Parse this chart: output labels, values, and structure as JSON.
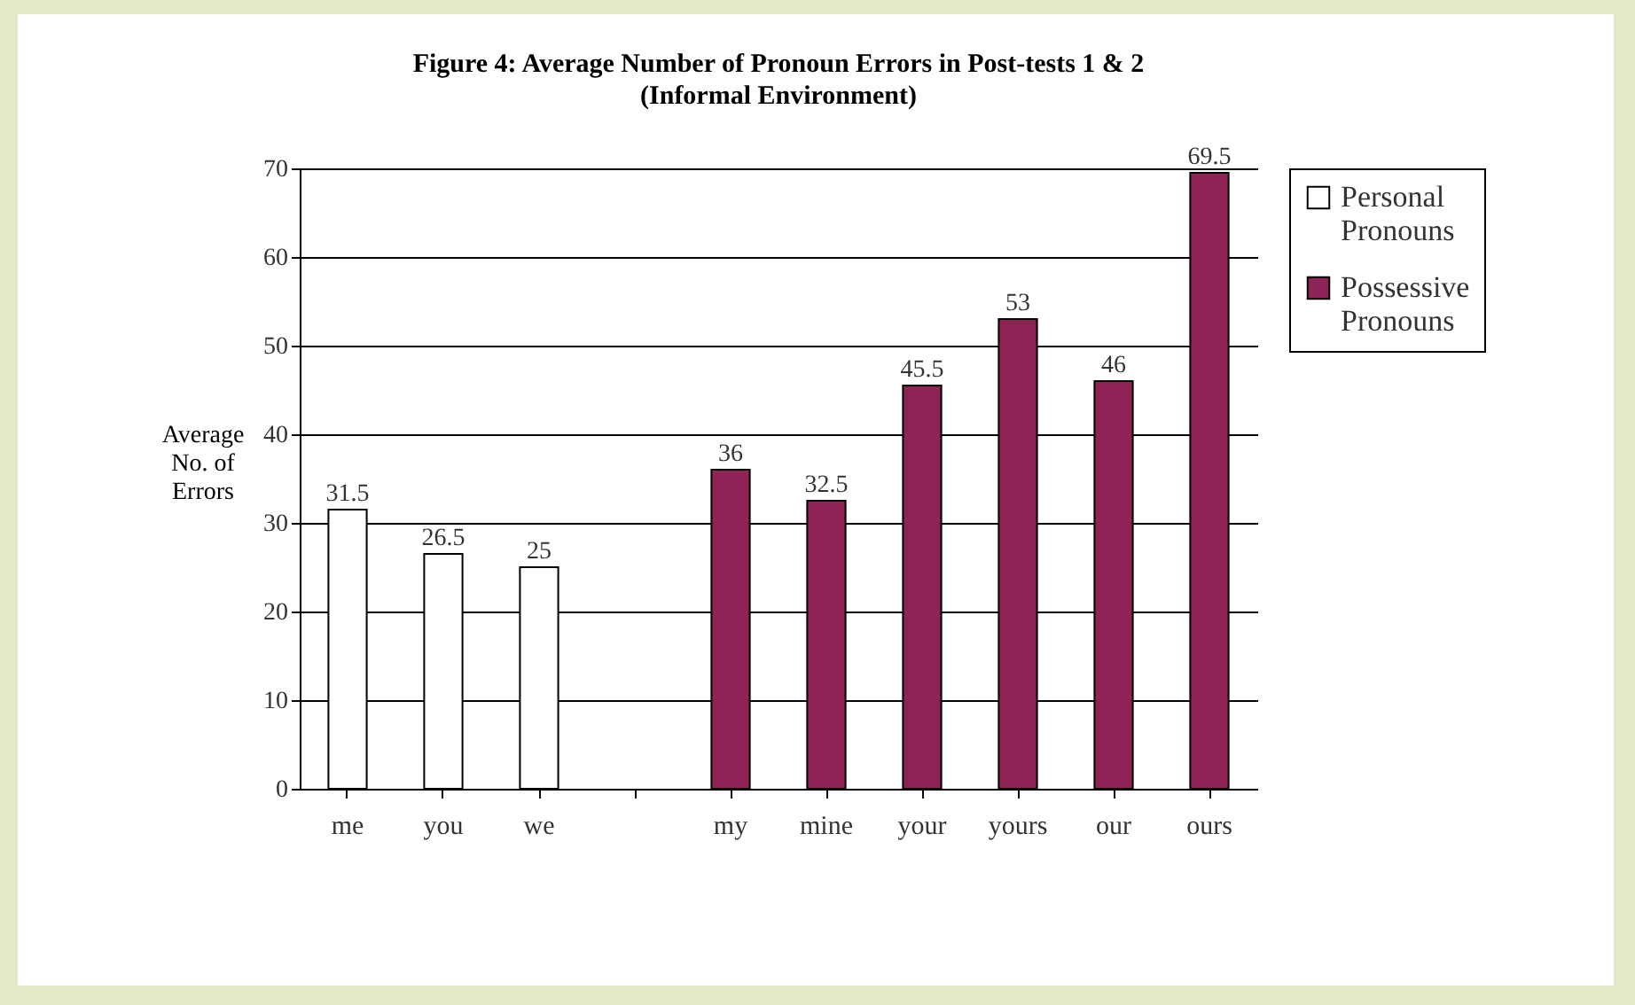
{
  "chart_data": {
    "type": "bar",
    "title": "Figure 4: Average Number of Pronoun Errors in Post-tests 1 & 2",
    "subtitle": "(Informal Environment)",
    "ylabel": "Average No. of Errors",
    "categories": [
      "me",
      "you",
      "we",
      null,
      "my",
      "mine",
      "your",
      "yours",
      "our",
      "ours"
    ],
    "series": [
      {
        "name": "Personal Pronouns",
        "color": "#ffffff",
        "values": [
          31.5,
          26.5,
          25,
          null,
          null,
          null,
          null,
          null,
          null,
          null
        ]
      },
      {
        "name": "Possessive Pronouns",
        "color": "#8e2456",
        "values": [
          null,
          null,
          null,
          null,
          36,
          32.5,
          45.5,
          53,
          46,
          69.5
        ]
      }
    ],
    "ylim": [
      0,
      70
    ],
    "yticks": [
      0,
      10,
      20,
      30,
      40,
      50,
      60,
      70
    ],
    "grid": "y",
    "legend": "right",
    "data_labels": true
  }
}
